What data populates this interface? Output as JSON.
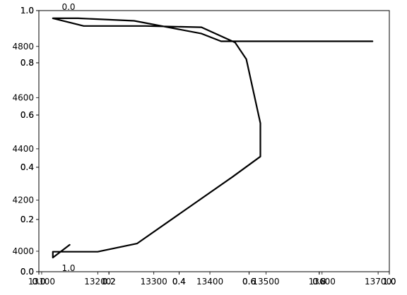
{
  "chart_data": {
    "type": "line",
    "title": "",
    "xlabel": "",
    "ylabel": "",
    "grid": false,
    "legend": "none",
    "line_color": "#000000",
    "primary_axes": {
      "xlim": [
        0.0,
        1.0
      ],
      "ylim": [
        0.0,
        1.0
      ],
      "x_ticks": [
        "0.0",
        "0.2",
        "0.4",
        "0.6",
        "0.8",
        "1.0"
      ],
      "y_ticks": [
        "0.0",
        "0.2",
        "0.4",
        "0.6",
        "0.8",
        "1.0"
      ]
    },
    "overlay_axes": [
      {
        "x_ticks": [
          "0.0",
          "0.2",
          "0.4",
          "0.6",
          "0.8",
          "1.0"
        ],
        "y_ticks": [
          "0.0",
          "0.2",
          "0.4",
          "0.6",
          "0.8",
          "1.0"
        ]
      },
      {
        "x_ticks": [
          "0.0",
          "0.2",
          "0.4",
          "0.6",
          "0.8",
          "1.0"
        ],
        "y_ticks": [
          "0.0",
          "0.2",
          "0.4",
          "0.6",
          "0.8",
          "1.0"
        ]
      }
    ],
    "twin_top_tick": "0.0",
    "twin_bottom_tick": "1.0",
    "data_axes": {
      "xlim": [
        13095,
        13720
      ],
      "ylim": [
        3920,
        4940
      ],
      "x_ticks": [
        13100,
        13200,
        13300,
        13400,
        13500,
        13600,
        13700
      ],
      "x_tick_labels": [
        "13100",
        "13200",
        "13300",
        "13400",
        "13500",
        "13600",
        "13700"
      ],
      "y_ticks": [
        4000,
        4200,
        4400,
        4600,
        4800
      ],
      "y_tick_labels": [
        "4000",
        "4200",
        "4400",
        "4600",
        "4800"
      ]
    },
    "series": [
      {
        "x": [
          13150,
          13120,
          13120,
          13175,
          13200,
          13270,
          13440,
          13490,
          13490,
          13465,
          13445,
          13385,
          13285,
          13235,
          13175,
          13120,
          13165,
          13265,
          13385,
          13420,
          13690
        ],
        "y": [
          4025,
          3975,
          3998,
          3998,
          3998,
          4030,
          4290,
          4370,
          4500,
          4750,
          4815,
          4875,
          4880,
          4880,
          4880,
          4910,
          4910,
          4900,
          4850,
          4820,
          4820
        ]
      }
    ]
  }
}
